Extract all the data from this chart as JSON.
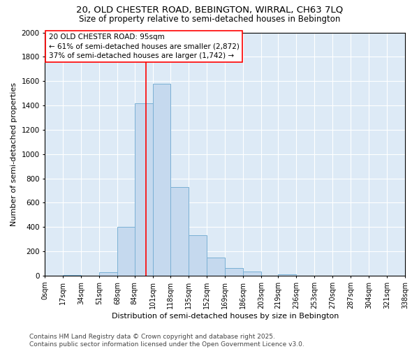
{
  "title1": "20, OLD CHESTER ROAD, BEBINGTON, WIRRAL, CH63 7LQ",
  "title2": "Size of property relative to semi-detached houses in Bebington",
  "xlabel": "Distribution of semi-detached houses by size in Bebington",
  "ylabel": "Number of semi-detached properties",
  "bar_left_edges": [
    0,
    17,
    34,
    51,
    68,
    84,
    101,
    118,
    135,
    152,
    169,
    186,
    203,
    219,
    236,
    253,
    270,
    287,
    304,
    321
  ],
  "bar_heights": [
    0,
    5,
    0,
    30,
    400,
    1420,
    1580,
    730,
    330,
    150,
    60,
    35,
    0,
    10,
    0,
    0,
    0,
    0,
    0,
    0
  ],
  "bin_width": 17,
  "bar_color": "#c5d9ee",
  "bar_edge_color": "#7ab0d4",
  "background_color": "#ddeaf6",
  "grid_color": "#b8cfe8",
  "red_line_x": 95,
  "annotation_text": "20 OLD CHESTER ROAD: 95sqm\n← 61% of semi-detached houses are smaller (2,872)\n37% of semi-detached houses are larger (1,742) →",
  "ylim": [
    0,
    2000
  ],
  "yticks": [
    0,
    200,
    400,
    600,
    800,
    1000,
    1200,
    1400,
    1600,
    1800,
    2000
  ],
  "tick_labels": [
    "0sqm",
    "17sqm",
    "34sqm",
    "51sqm",
    "68sqm",
    "84sqm",
    "101sqm",
    "118sqm",
    "135sqm",
    "152sqm",
    "169sqm",
    "186sqm",
    "203sqm",
    "219sqm",
    "236sqm",
    "253sqm",
    "270sqm",
    "287sqm",
    "304sqm",
    "321sqm",
    "338sqm"
  ],
  "footer_text": "Contains HM Land Registry data © Crown copyright and database right 2025.\nContains public sector information licensed under the Open Government Licence v3.0.",
  "title1_fontsize": 9.5,
  "title2_fontsize": 8.5,
  "axis_label_fontsize": 8,
  "tick_fontsize": 7,
  "annotation_fontsize": 7.5,
  "footer_fontsize": 6.5
}
